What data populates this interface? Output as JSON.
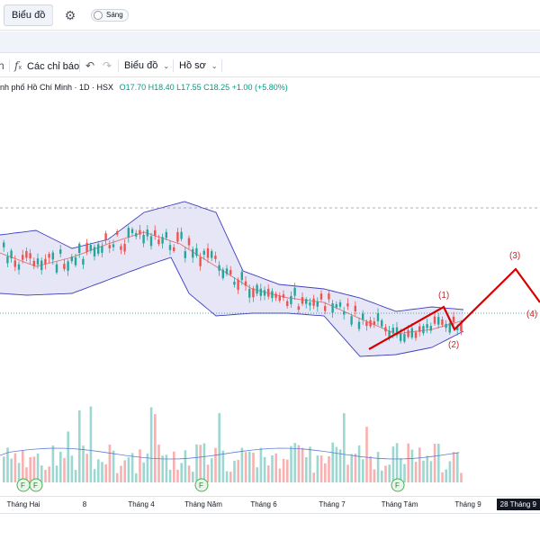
{
  "toolbar": {
    "tab_label": "Biểu đồ",
    "settings_icon": "gear-icon",
    "theme_toggle_label": "Sáng"
  },
  "chart_toolbar": {
    "indicators_label": "Các chỉ báo",
    "chart_menu_label": "Biểu đồ",
    "profile_menu_label": "Hồ sơ"
  },
  "legend": {
    "symbol_text": "nh phố Hồ Chí Minh · 1D · HSX",
    "ohlc_text": "O17.70 H18.40 L17.55 C18.25 +1.00 (+5.80%)"
  },
  "colors": {
    "up": "#26a69a",
    "down": "#ef5350",
    "band": "#3f3fbf",
    "wave": "#d50000"
  },
  "chart_data": {
    "type": "candlestick",
    "symbol_note": "Bollinger Bands overlay, volume histogram, Elliott wave drawing",
    "x_ticks": [
      "Tháng Hai",
      "8",
      "Tháng 4",
      "Tháng Năm",
      "Tháng 6",
      "Tháng 7",
      "Tháng Tám",
      "Tháng 9"
    ],
    "time_badge": "28 Tháng 9",
    "last_close": 18.25,
    "wave_labels": [
      "(1)",
      "(2)",
      "(3)",
      "(4)"
    ]
  }
}
